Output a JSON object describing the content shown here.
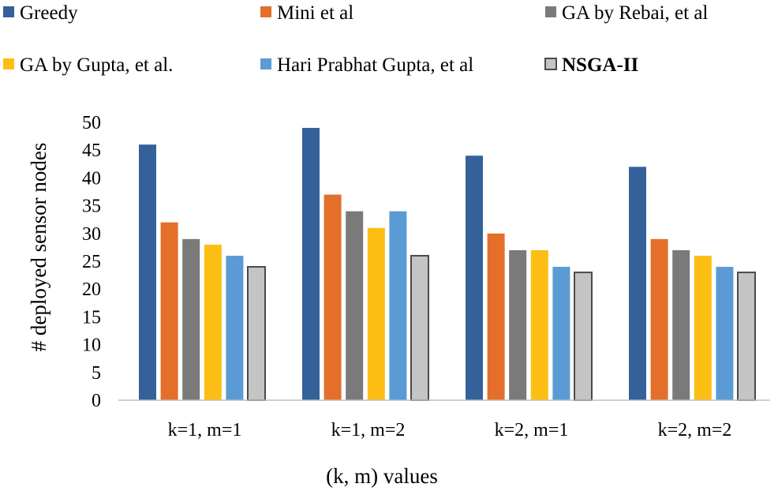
{
  "chart_data": {
    "type": "bar",
    "title": "",
    "xlabel": "(k, m) values",
    "ylabel": "# deployed sensor nodes",
    "ylim": [
      0,
      50
    ],
    "yticks": [
      0,
      5,
      10,
      15,
      20,
      25,
      30,
      35,
      40,
      45,
      50
    ],
    "grid": false,
    "legend_position": "top",
    "categories": [
      "k=1, m=1",
      "k=1, m=2",
      "k=2, m=1",
      "k=2, m=2"
    ],
    "series": [
      {
        "name": "Greedy",
        "color": "#35619A",
        "values": [
          46,
          49,
          44,
          42
        ]
      },
      {
        "name": "Mini et al",
        "color": "#E36F2A",
        "values": [
          32,
          37,
          30,
          29
        ]
      },
      {
        "name": "GA by Rebai, et al",
        "color": "#7A7A7A",
        "values": [
          29,
          34,
          27,
          27
        ]
      },
      {
        "name": "GA by Gupta, et al.",
        "color": "#FDBE14",
        "values": [
          28,
          31,
          27,
          26
        ]
      },
      {
        "name": "Hari Prabhat Gupta, et al",
        "color": "#5B9BD5",
        "values": [
          26,
          34,
          24,
          24
        ]
      },
      {
        "name": "NSGA-II",
        "color": "#C4C4C4",
        "stroke": "#4A4A4A",
        "bold": true,
        "values": [
          24,
          26,
          23,
          23
        ]
      }
    ]
  }
}
